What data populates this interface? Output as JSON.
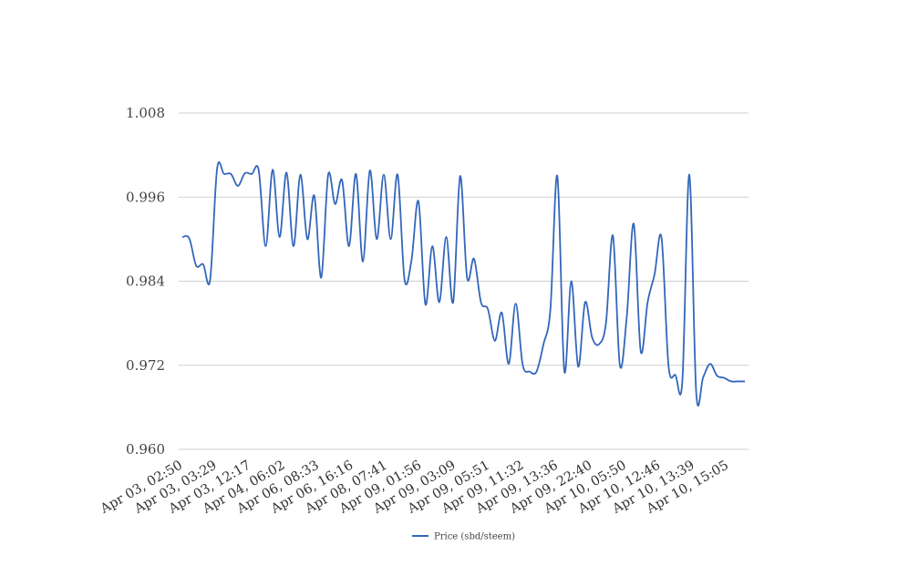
{
  "chart_data": {
    "type": "line",
    "title": "",
    "xlabel": "",
    "ylabel": "",
    "ylim": [
      0.96,
      1.008
    ],
    "yticks": [
      "1.008",
      "0.996",
      "0.984",
      "0.972",
      "0.960"
    ],
    "ytick_values": [
      1.008,
      0.996,
      0.984,
      0.972,
      0.96
    ],
    "xtick_labels": [
      "Apr 03, 02:50",
      "Apr 03, 03:29",
      "Apr 03, 12:17",
      "Apr 04, 06:02",
      "Apr 06, 08:33",
      "Apr 06, 16:16",
      "Apr 08, 07:41",
      "Apr 09, 01:56",
      "Apr 09, 03:09",
      "Apr 09, 05:51",
      "Apr 09, 11:32",
      "Apr 09, 13:36",
      "Apr 09, 22:40",
      "Apr 10, 05:50",
      "Apr 10, 12:46",
      "Apr 10, 13:39",
      "Apr 10, 15:05"
    ],
    "grid": true,
    "legend_position": "bottom-center",
    "color": "#3366bb",
    "series": [
      {
        "name": "Price (sbd/steem)",
        "values": [
          0.9903,
          0.9901,
          0.9862,
          0.9864,
          0.9842,
          1.0,
          0.9993,
          0.9993,
          0.9976,
          0.9994,
          0.9993,
          0.9998,
          0.989,
          0.9999,
          0.9903,
          0.9995,
          0.989,
          0.9992,
          0.99,
          0.9962,
          0.9845,
          0.9992,
          0.995,
          0.9984,
          0.989,
          0.9993,
          0.9868,
          0.9998,
          0.99,
          0.9992,
          0.99,
          0.9992,
          0.9842,
          0.987,
          0.9954,
          0.9807,
          0.989,
          0.981,
          0.9903,
          0.981,
          0.999,
          0.9845,
          0.9872,
          0.981,
          0.98,
          0.9755,
          0.9795,
          0.9722,
          0.9808,
          0.9721,
          0.9711,
          0.9711,
          0.975,
          0.98,
          0.999,
          0.9712,
          0.984,
          0.9718,
          0.981,
          0.976,
          0.975,
          0.978,
          0.9905,
          0.972,
          0.979,
          0.9922,
          0.974,
          0.981,
          0.985,
          0.9902,
          0.972,
          0.9706,
          0.9698,
          0.9992,
          0.968,
          0.9703,
          0.9722,
          0.9705,
          0.9702,
          0.9697,
          0.9697,
          0.9697
        ]
      }
    ]
  }
}
